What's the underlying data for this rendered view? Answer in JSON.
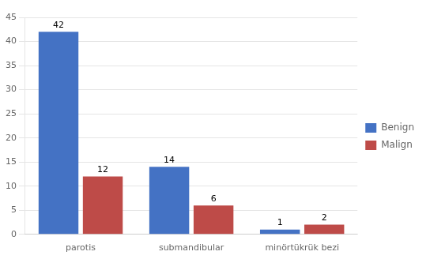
{
  "chart_data": {
    "type": "bar",
    "categories": [
      "parotis",
      "submandibular",
      "minörtükrük bezi"
    ],
    "series": [
      {
        "name": "Benign",
        "color": "#4472C4",
        "values": [
          42,
          14,
          1
        ]
      },
      {
        "name": "Malign",
        "color": "#BE4B48",
        "values": [
          12,
          6,
          2
        ]
      }
    ],
    "ylim": [
      0,
      45
    ],
    "yticks": [
      0,
      5,
      10,
      15,
      20,
      25,
      30,
      35,
      40,
      45
    ],
    "grid": true,
    "legend": "right",
    "data_labels": true
  }
}
